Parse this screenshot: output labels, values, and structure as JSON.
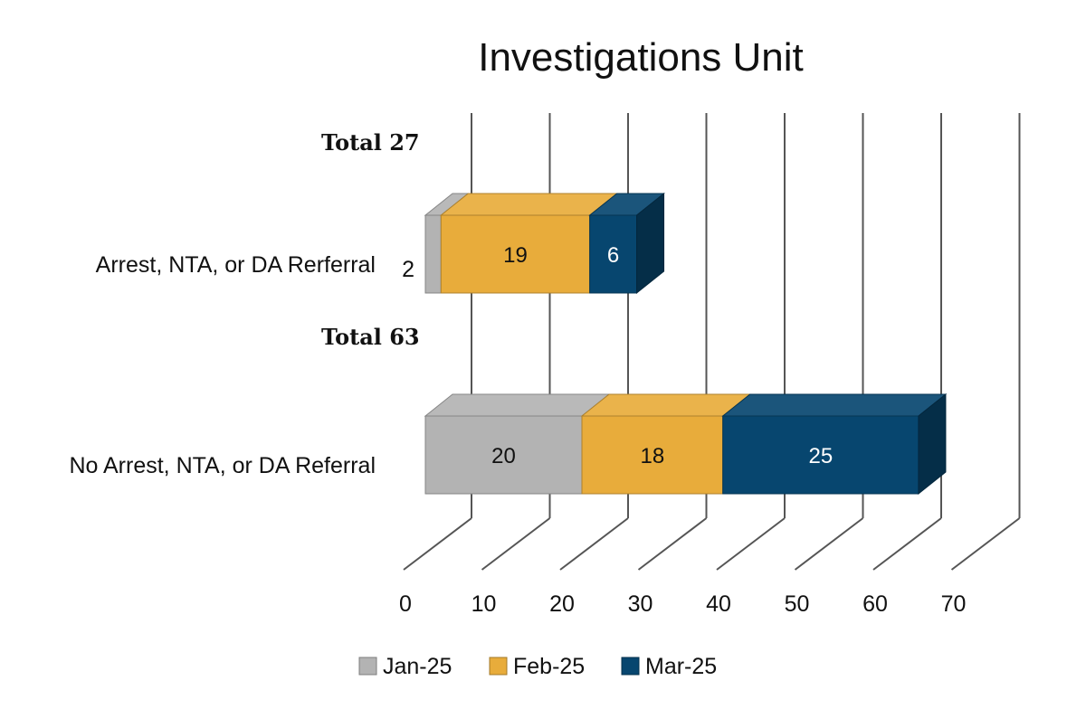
{
  "chart_data": {
    "type": "bar",
    "orientation": "horizontal",
    "stacked": true,
    "three_d": true,
    "title": "Investigations Unit",
    "categories": [
      "Arrest, NTA, or DA Rerferral",
      "No Arrest, NTA, or DA Referral"
    ],
    "totals": [
      "Total 27",
      "Total 63"
    ],
    "series": [
      {
        "name": "Jan-25",
        "values": [
          2,
          20
        ],
        "color": "#b3b3b3",
        "label_color": "#111111"
      },
      {
        "name": "Feb-25",
        "values": [
          19,
          18
        ],
        "color": "#e8ac3b",
        "label_color": "#111111"
      },
      {
        "name": "Mar-25",
        "values": [
          6,
          25
        ],
        "color": "#07466f",
        "label_color": "#ffffff"
      }
    ],
    "xlim": [
      0,
      70
    ],
    "xticks": [
      0,
      10,
      20,
      30,
      40,
      50,
      60,
      70
    ],
    "grid": true,
    "legend_position": "bottom"
  }
}
